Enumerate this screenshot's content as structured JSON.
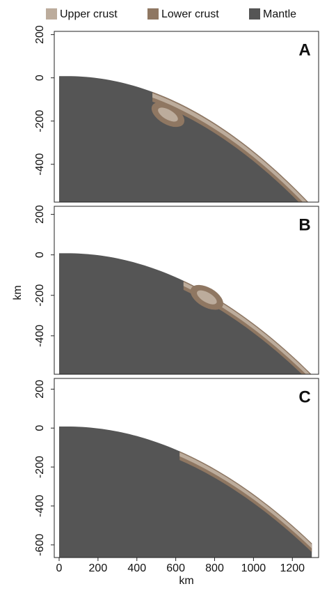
{
  "legend": [
    {
      "label": "Upper crust",
      "color": "#bcac9c"
    },
    {
      "label": "Lower crust",
      "color": "#8f7762"
    },
    {
      "label": "Mantle",
      "color": "#555555"
    }
  ],
  "x_label": "km",
  "y_label": "km",
  "chart_data": [
    {
      "type": "section",
      "title": "A",
      "xlim": [
        -25,
        1335
      ],
      "ylim": [
        -575,
        215
      ],
      "yticks": [
        200,
        0,
        -200,
        -400
      ]
    },
    {
      "type": "section",
      "title": "B",
      "xlim": [
        -25,
        1335
      ],
      "ylim": [
        -590,
        240
      ],
      "yticks": [
        200,
        0,
        -200,
        -400
      ]
    },
    {
      "type": "section",
      "title": "C",
      "xlim": [
        -25,
        1335
      ],
      "ylim": [
        -665,
        255
      ],
      "yticks": [
        200,
        0,
        -200,
        -400,
        -600
      ],
      "xticks": [
        0,
        200,
        400,
        600,
        800,
        1000,
        1200
      ]
    }
  ]
}
